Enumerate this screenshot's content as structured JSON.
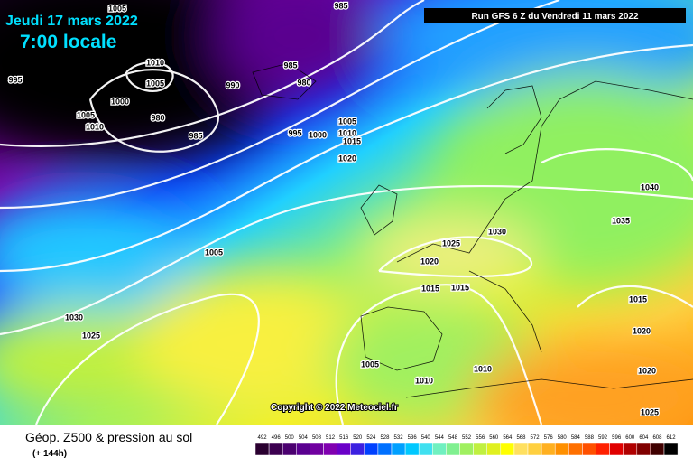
{
  "header": {
    "date": "Jeudi 17 mars 2022",
    "time": "7:00 locale",
    "run": "Run GFS 6 Z du Vendredi 11 mars 2022"
  },
  "isobar_labels": [
    "985",
    "995",
    "1005",
    "1010",
    "1005",
    "990",
    "985",
    "980",
    "1000",
    "1005",
    "980",
    "1010",
    "985",
    "995",
    "1000",
    "1005",
    "1010",
    "1015",
    "1020",
    "1040",
    "1035",
    "1030",
    "1025",
    "1005",
    "1020",
    "1015",
    "1015",
    "1015",
    "1030",
    "1025",
    "1020",
    "1005",
    "1010",
    "1020",
    "1010",
    "1025"
  ],
  "copyright": "Copyright © 2022 Meteociel.fr",
  "footer": {
    "title": "Géop. Z500 & pression au sol",
    "subtitle": "(+ 144h)"
  },
  "legend": {
    "values": [
      492,
      496,
      500,
      504,
      508,
      512,
      516,
      520,
      524,
      528,
      532,
      536,
      540,
      544,
      548,
      552,
      556,
      560,
      564,
      568,
      572,
      576,
      580,
      584,
      588,
      592,
      596,
      600,
      604,
      608,
      612
    ],
    "colors": [
      "#2a0030",
      "#3c0050",
      "#4b0070",
      "#5a0090",
      "#7000a0",
      "#8000b0",
      "#6a00c8",
      "#3c20e0",
      "#0040ff",
      "#0070ff",
      "#00a0ff",
      "#00c8ff",
      "#40e0f0",
      "#70f0c0",
      "#80f090",
      "#a0f060",
      "#c0f040",
      "#e0f020",
      "#ffff00",
      "#ffe060",
      "#ffd040",
      "#ffb020",
      "#ff9000",
      "#ff7000",
      "#ff5000",
      "#ff2000",
      "#e00000",
      "#b00000",
      "#800000",
      "#400000",
      "#000000"
    ]
  }
}
